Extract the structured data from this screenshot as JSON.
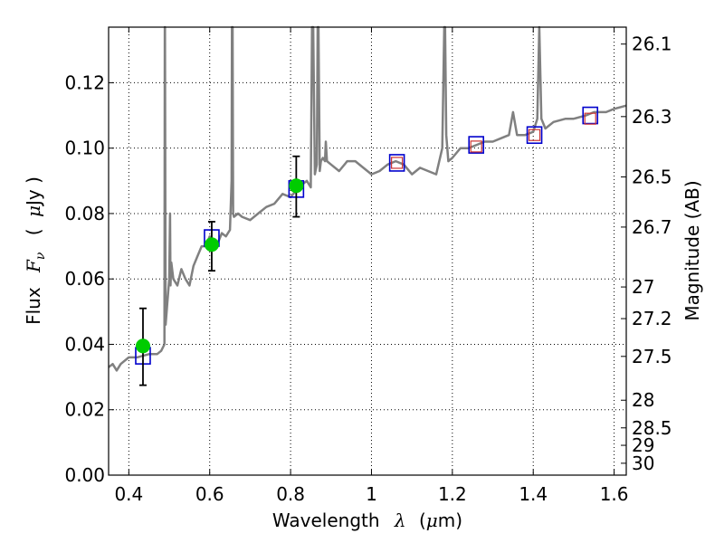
{
  "chart_data": {
    "type": "line",
    "title": "",
    "xlabel": {
      "prefix": "Wavelength",
      "symbol": "λ",
      "units_open": "(",
      "units_mu": "μ",
      "units_rest": "m)"
    },
    "ylabel": {
      "prefix": "Flux",
      "symbol": "F",
      "subscript": "ν",
      "units_open": "(",
      "units_mu": "μ",
      "units_rest": "Jy )"
    },
    "y2label": "Magnitude (AB)",
    "xlim": [
      0.35,
      1.63
    ],
    "ylim": [
      0.0,
      0.137
    ],
    "xticks": [
      0.4,
      0.6,
      0.8,
      1.0,
      1.2,
      1.4,
      1.6
    ],
    "xtick_labels": [
      "0.4",
      "0.6",
      "0.8",
      "1",
      "1.2",
      "1.4",
      "1.6"
    ],
    "yticks": [
      0.0,
      0.02,
      0.04,
      0.06,
      0.08,
      0.1,
      0.12
    ],
    "ytick_labels": [
      "0.00",
      "0.02",
      "0.04",
      "0.06",
      "0.08",
      "0.10",
      "0.12"
    ],
    "mag_ticks": [
      26.1,
      26.3,
      26.5,
      26.7,
      27,
      27.2,
      27.5,
      28,
      28.5,
      29,
      30
    ],
    "mag_tick_labels": [
      "26.1",
      "26.3",
      "26.5",
      "26.7",
      "27",
      "27.2",
      "27.5",
      "28",
      "28.5",
      "29",
      "30"
    ],
    "grid": true,
    "colors": {
      "spectrum": "#808080",
      "observed": "#00cc00",
      "errorbar": "#000000",
      "model_blue": "#0000cc",
      "model_red": "#cc3333"
    },
    "series": [
      {
        "name": "model spectrum",
        "type": "line",
        "x": [
          0.35,
          0.36,
          0.37,
          0.38,
          0.4,
          0.42,
          0.45,
          0.47,
          0.48,
          0.488,
          0.489,
          0.4895,
          0.491,
          0.5,
          0.502,
          0.503,
          0.505,
          0.51,
          0.52,
          0.53,
          0.54,
          0.55,
          0.56,
          0.57,
          0.58,
          0.59,
          0.6,
          0.61,
          0.62,
          0.63,
          0.64,
          0.65,
          0.654,
          0.655,
          0.6565,
          0.658,
          0.66,
          0.67,
          0.68,
          0.7,
          0.72,
          0.74,
          0.76,
          0.78,
          0.8,
          0.82,
          0.84,
          0.85,
          0.853,
          0.856,
          0.86,
          0.865,
          0.867,
          0.869,
          0.872,
          0.875,
          0.88,
          0.885,
          0.887,
          0.89,
          0.9,
          0.92,
          0.94,
          0.96,
          0.98,
          1.0,
          1.02,
          1.04,
          1.06,
          1.08,
          1.1,
          1.12,
          1.14,
          1.16,
          1.175,
          1.18,
          1.182,
          1.185,
          1.19,
          1.2,
          1.22,
          1.24,
          1.26,
          1.28,
          1.3,
          1.32,
          1.34,
          1.35,
          1.36,
          1.38,
          1.4,
          1.41,
          1.415,
          1.42,
          1.43,
          1.45,
          1.48,
          1.5,
          1.53,
          1.55,
          1.58,
          1.6,
          1.63
        ],
        "y": [
          0.033,
          0.034,
          0.032,
          0.034,
          0.036,
          0.036,
          0.037,
          0.037,
          0.038,
          0.04,
          0.139,
          0.139,
          0.046,
          0.06,
          0.08,
          0.058,
          0.065,
          0.06,
          0.058,
          0.063,
          0.06,
          0.058,
          0.064,
          0.067,
          0.07,
          0.07,
          0.073,
          0.069,
          0.071,
          0.074,
          0.073,
          0.075,
          0.09,
          0.139,
          0.139,
          0.08,
          0.079,
          0.08,
          0.079,
          0.078,
          0.08,
          0.082,
          0.083,
          0.086,
          0.085,
          0.088,
          0.09,
          0.088,
          0.139,
          0.139,
          0.092,
          0.095,
          0.139,
          0.139,
          0.093,
          0.096,
          0.097,
          0.096,
          0.102,
          0.096,
          0.095,
          0.093,
          0.096,
          0.096,
          0.094,
          0.092,
          0.093,
          0.095,
          0.096,
          0.095,
          0.092,
          0.094,
          0.093,
          0.092,
          0.1,
          0.139,
          0.139,
          0.104,
          0.096,
          0.097,
          0.1,
          0.1,
          0.101,
          0.102,
          0.102,
          0.103,
          0.104,
          0.111,
          0.104,
          0.104,
          0.105,
          0.109,
          0.139,
          0.109,
          0.106,
          0.108,
          0.109,
          0.109,
          0.11,
          0.111,
          0.111,
          0.112,
          0.113
        ]
      },
      {
        "name": "observed photometry",
        "type": "scatter",
        "x": [
          0.435,
          0.605,
          0.814
        ],
        "y": [
          0.0395,
          0.0705,
          0.0885
        ],
        "yerr_low": [
          0.0275,
          0.0625,
          0.079
        ],
        "yerr_high": [
          0.051,
          0.0775,
          0.0975
        ]
      },
      {
        "name": "model band flux (blue squares)",
        "type": "scatter",
        "x": [
          0.435,
          0.605,
          0.814,
          1.063,
          1.259,
          1.403,
          1.541
        ],
        "y": [
          0.0365,
          0.0725,
          0.0875,
          0.0955,
          0.101,
          0.104,
          0.11
        ]
      },
      {
        "name": "model band flux (red squares)",
        "type": "scatter",
        "x": [
          1.063,
          1.259,
          1.403,
          1.541
        ],
        "y": [
          0.0955,
          0.1005,
          0.104,
          0.109
        ]
      }
    ]
  }
}
